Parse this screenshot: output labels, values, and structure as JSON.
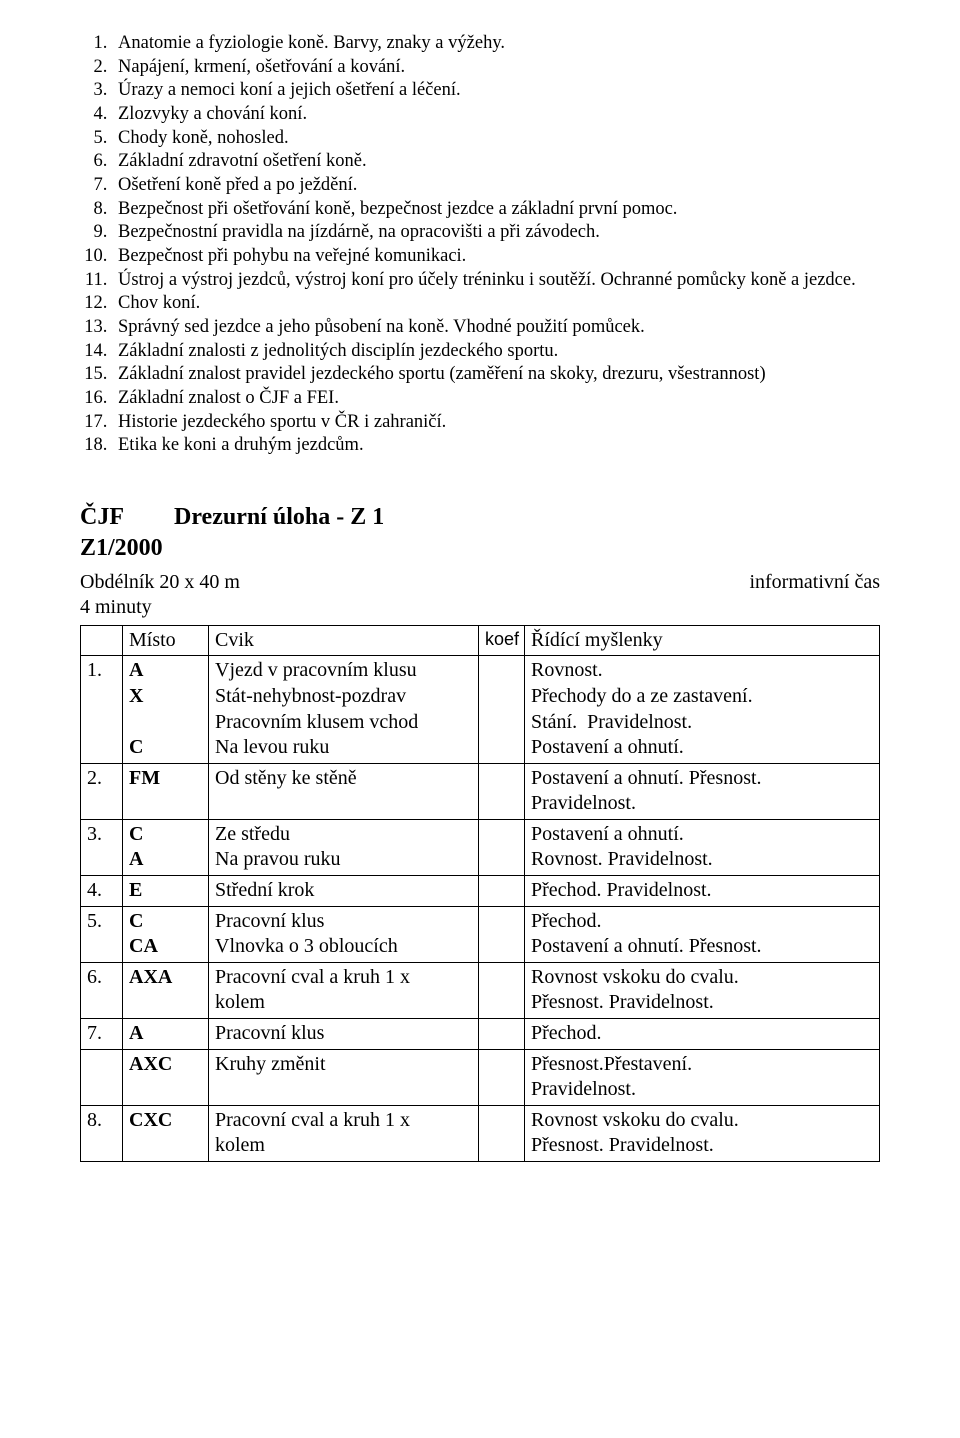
{
  "topics": [
    "Anatomie a fyziologie koně. Barvy, znaky a výžehy.",
    "Napájení, krmení, ošetřování a kování.",
    "Úrazy a nemoci koní a jejich ošetření a léčení.",
    "Zlozvyky a chování koní.",
    "Chody koně, nohosled.",
    "Základní zdravotní ošetření koně.",
    "Ošetření koně před a po ježdění.",
    "Bezpečnost při ošetřování koně, bezpečnost jezdce a základní první pomoc.",
    "Bezpečnostní pravidla na jízdárně, na opracovišti a při závodech.",
    "Bezpečnost při pohybu na veřejné komunikaci.",
    "Ústroj a výstroj jezdců, výstroj koní pro účely tréninku i soutěží. Ochranné pomůcky koně a jezdce.",
    "Chov koní.",
    "Správný sed jezdce a jeho působení na koně. Vhodné použití pomůcek.",
    "Základní znalosti z jednolitých disciplín jezdeckého sportu.",
    "Základní znalost pravidel jezdeckého sportu (zaměření na skoky, drezuru, všestrannost)",
    "Základní znalost o ČJF a FEI.",
    "Historie jezdeckého sportu v ČR i zahraničí.",
    "Etika ke koni a druhým jezdcům."
  ],
  "heading": {
    "org": "ČJF",
    "title": "Drezurní úloha - Z 1",
    "code": "Z1/2000",
    "arena": "Obdélník 20 x 40 m",
    "time_label": "informativní čas",
    "time_value": "4 minuty"
  },
  "table": {
    "headers": {
      "place": "Místo",
      "cvik": "Cvik",
      "koef": "koef",
      "think": "Řídící myšlenky"
    },
    "rows": [
      {
        "n": "1.",
        "place": [
          "A",
          "X",
          "",
          "C"
        ],
        "cvik": [
          "Vjezd v pracovním klusu",
          "Stát-nehybnost-pozdrav",
          "Pracovním klusem vchod",
          "Na levou ruku"
        ],
        "think": [
          "Rovnost.",
          "Přechody do a ze zastavení.",
          "Stání.  Pravidelnost.",
          "Postavení a ohnutí."
        ]
      },
      {
        "n": "2.",
        "place": [
          "FM"
        ],
        "cvik": [
          "Od stěny ke stěně"
        ],
        "think": [
          "Postavení a ohnutí. Přesnost.",
          "Pravidelnost."
        ]
      },
      {
        "n": "3.",
        "place": [
          "C",
          "A"
        ],
        "cvik": [
          "Ze středu",
          "Na pravou ruku"
        ],
        "think": [
          "Postavení a ohnutí.",
          "Rovnost. Pravidelnost."
        ]
      },
      {
        "n": "4.",
        "place": [
          "E"
        ],
        "cvik": [
          "Střední krok"
        ],
        "think": [
          "Přechod. Pravidelnost."
        ]
      },
      {
        "n": "5.",
        "place": [
          "C",
          "CA"
        ],
        "cvik": [
          "Pracovní klus",
          "Vlnovka o 3 obloucích"
        ],
        "think": [
          "Přechod.",
          "Postavení a ohnutí. Přesnost."
        ]
      },
      {
        "n": "6.",
        "place": [
          "AXA"
        ],
        "cvik": [
          "Pracovní cval a kruh 1 x",
          "kolem"
        ],
        "think": [
          "Rovnost vskoku do cvalu.",
          "Přesnost. Pravidelnost."
        ]
      },
      {
        "n": "7.",
        "place": [
          "A",
          "AXC"
        ],
        "cvik": [
          "Pracovní klus",
          "Kruhy změnit"
        ],
        "think": [
          "Přechod.",
          "Přesnost.Přestavení.",
          "Pravidelnost."
        ]
      },
      {
        "n": "8.",
        "place": [
          "CXC"
        ],
        "cvik": [
          "Pracovní cval a kruh 1 x",
          "kolem"
        ],
        "think": [
          "Rovnost vskoku do cvalu.",
          "Přesnost. Pravidelnost."
        ]
      }
    ]
  }
}
